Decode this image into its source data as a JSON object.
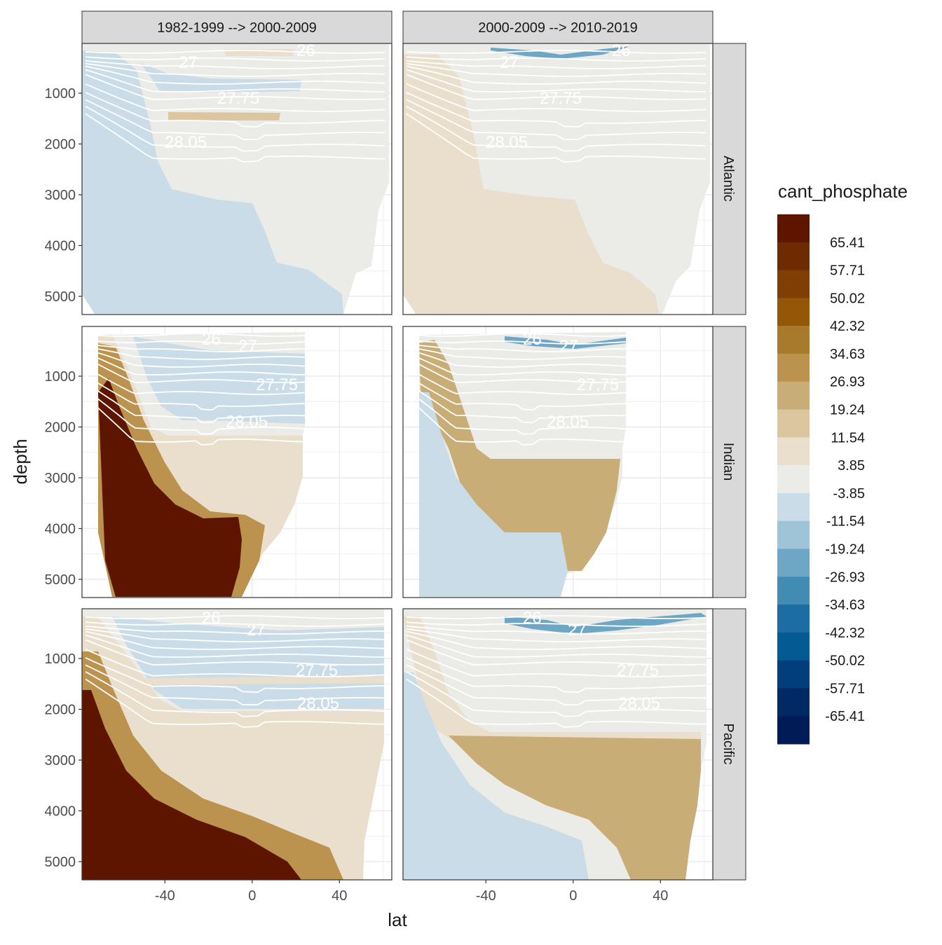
{
  "chart_data": {
    "type": "heatmap",
    "subtype": "faceted filled-contour section plot with isopycnal overlays",
    "facet_cols": [
      "1982-1999 --> 2000-2009",
      "2000-2009 --> 2010-2019"
    ],
    "facet_rows": [
      "Atlantic",
      "Indian",
      "Pacific"
    ],
    "xlabel": "lat",
    "ylabel": "depth",
    "x_ticks": [
      -40,
      0,
      40
    ],
    "y_ticks": [
      1000,
      2000,
      3000,
      4000,
      5000
    ],
    "xlim": [
      -78,
      64
    ],
    "ylim": [
      5350,
      0
    ],
    "isopycnal_labels": [
      "26",
      "27",
      "27.75",
      "28.05"
    ],
    "legend": {
      "title": "cant_phosphate",
      "position": "right",
      "levels": [
        "65.41",
        "57.71",
        "50.02",
        "42.32",
        "34.63",
        "26.93",
        "19.24",
        "11.54",
        "3.85",
        "-3.85",
        "-11.54",
        "-19.24",
        "-26.93",
        "-34.63",
        "-42.32",
        "-50.02",
        "-57.71",
        "-65.41"
      ],
      "colors": [
        "#5e1500",
        "#6e2a00",
        "#7f3f04",
        "#945708",
        "#a87a2c",
        "#bb934f",
        "#c9ad77",
        "#dbc69f",
        "#e9dfcc",
        "#ebebe8",
        "#c9dce8",
        "#9fc4d8",
        "#6ea6c5",
        "#428bb3",
        "#1d6da4",
        "#045a93",
        "#023d7c",
        "#012a64",
        "#011b57"
      ]
    }
  }
}
